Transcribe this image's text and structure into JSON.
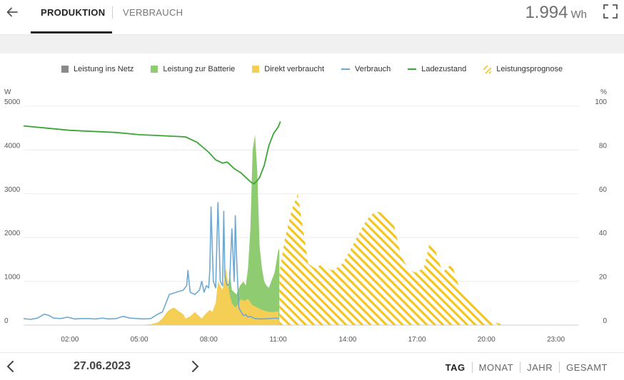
{
  "header": {
    "tabs": [
      {
        "label": "PRODUKTION",
        "active": true
      },
      {
        "label": "VERBRAUCH",
        "active": false
      }
    ],
    "total_value": "1.994",
    "total_unit": "Wh"
  },
  "legend": [
    {
      "label": "Leistung ins Netz",
      "kind": "box",
      "color": "#8a8a8a"
    },
    {
      "label": "Leistung zur Batterie",
      "kind": "box",
      "color": "#8fcb70"
    },
    {
      "label": "Direkt verbraucht",
      "kind": "box",
      "color": "#f5cf55"
    },
    {
      "label": "Verbrauch",
      "kind": "line",
      "color": "#6fa8d0"
    },
    {
      "label": "Ladezustand",
      "kind": "line",
      "color": "#3aa635"
    },
    {
      "label": "Leistungsprognose",
      "kind": "hatch",
      "color": "#f3c51f"
    }
  ],
  "chart_data": {
    "type": "area",
    "left_unit": "W",
    "right_unit": "%",
    "ylim_left": [
      0,
      5000
    ],
    "ylim_right": [
      0,
      100
    ],
    "yticks_left": [
      "0",
      "1000",
      "2000",
      "3000",
      "4000",
      "5000"
    ],
    "yticks_right": [
      "0",
      "20",
      "40",
      "60",
      "80",
      "100"
    ],
    "xlim_hours": [
      0,
      24
    ],
    "xticks": [
      "02:00",
      "05:00",
      "08:00",
      "11:00",
      "14:00",
      "17:00",
      "20:00",
      "23:00"
    ],
    "xtick_hours": [
      2,
      5,
      8,
      11,
      14,
      17,
      20,
      23
    ],
    "grid": true,
    "legend_position": "top",
    "colors": {
      "direkt": "#f5cf55",
      "batterie": "#8fcb70",
      "verbrauch": "#6fa8d0",
      "ladezustand": "#3aa635",
      "prognose": "#f3c51f"
    },
    "series": [
      {
        "name": "Direkt verbraucht",
        "axis": "left",
        "x": [
          5.0,
          5.5,
          5.8,
          6.0,
          6.2,
          6.3,
          6.5,
          6.7,
          6.9,
          7.0,
          7.2,
          7.4,
          7.6,
          7.7,
          7.85,
          7.95,
          8.05,
          8.15,
          8.3,
          8.4,
          8.5,
          8.6,
          8.75,
          8.9,
          9.0,
          9.15,
          9.3,
          9.4,
          9.5,
          9.7,
          9.9,
          10.1,
          10.3,
          10.6,
          10.8,
          11.0,
          11.05
        ],
        "y": [
          0,
          20,
          60,
          150,
          300,
          350,
          400,
          320,
          250,
          150,
          200,
          300,
          200,
          150,
          250,
          300,
          350,
          300,
          500,
          1000,
          900,
          800,
          1300,
          700,
          500,
          400,
          500,
          600,
          550,
          600,
          450,
          400,
          350,
          300,
          300,
          320,
          0
        ]
      },
      {
        "name": "Leistung zur Batterie",
        "axis": "left",
        "x": [
          8.8,
          8.9,
          9.0,
          9.2,
          9.35,
          9.5,
          9.6,
          9.7,
          9.8,
          9.9,
          10.0,
          10.1,
          10.2,
          10.3,
          10.4,
          10.5,
          10.6,
          10.7,
          10.85,
          11.0,
          11.05
        ],
        "y": [
          400,
          1250,
          800,
          700,
          900,
          1000,
          900,
          1300,
          2200,
          4000,
          4350,
          3500,
          1800,
          1300,
          1000,
          900,
          850,
          1000,
          1200,
          1700,
          1750
        ]
      },
      {
        "name": "Verbrauch",
        "axis": "left",
        "x": [
          0.0,
          0.3,
          0.6,
          0.9,
          1.1,
          1.3,
          1.6,
          1.9,
          2.2,
          2.5,
          2.8,
          3.1,
          3.4,
          3.7,
          4.0,
          4.3,
          4.6,
          4.9,
          5.2,
          5.5,
          5.8,
          6.0,
          6.3,
          6.6,
          6.9,
          7.05,
          7.1,
          7.2,
          7.4,
          7.6,
          7.7,
          7.8,
          7.9,
          8.0,
          8.05,
          8.1,
          8.2,
          8.3,
          8.4,
          8.5,
          8.6,
          8.65,
          8.7,
          8.8,
          8.9,
          9.0,
          9.1,
          9.15,
          9.2,
          9.3,
          9.4,
          9.5,
          9.6,
          9.7,
          9.8,
          9.9,
          10.0,
          10.3,
          10.6,
          10.9,
          11.05
        ],
        "y": [
          150,
          130,
          160,
          250,
          220,
          160,
          150,
          180,
          140,
          150,
          150,
          140,
          160,
          140,
          150,
          200,
          160,
          150,
          140,
          150,
          250,
          300,
          700,
          750,
          800,
          900,
          1250,
          750,
          700,
          800,
          1000,
          750,
          900,
          850,
          1300,
          2700,
          1000,
          850,
          2800,
          1000,
          900,
          2600,
          1100,
          900,
          950,
          2200,
          1000,
          2500,
          1600,
          400,
          300,
          220,
          240,
          180,
          200,
          170,
          150,
          140,
          150,
          160,
          150
        ]
      },
      {
        "name": "Ladezustand",
        "axis": "right",
        "x": [
          0.0,
          1.0,
          2.0,
          3.0,
          4.0,
          5.0,
          6.0,
          7.0,
          7.5,
          8.0,
          8.3,
          8.6,
          8.8,
          9.1,
          9.4,
          9.6,
          9.8,
          9.95,
          10.1,
          10.2,
          10.4,
          10.6,
          10.8,
          11.0,
          11.1
        ],
        "y": [
          91,
          90,
          89,
          88.5,
          88,
          87,
          86.5,
          86,
          83.5,
          79,
          75.5,
          74,
          74.5,
          71.5,
          69.5,
          67.5,
          65.5,
          64.5,
          66,
          67.5,
          73,
          82,
          87.5,
          90.5,
          93
        ]
      },
      {
        "name": "Leistungsprognose",
        "axis": "left",
        "x": [
          11.05,
          11.3,
          11.6,
          11.85,
          12.05,
          12.3,
          12.6,
          12.9,
          13.3,
          13.7,
          14.0,
          14.3,
          14.7,
          14.9,
          15.2,
          15.6,
          16.0,
          16.3,
          16.6,
          16.9,
          17.3,
          17.55,
          17.8,
          18.1,
          18.5,
          18.8,
          19.2,
          19.6,
          20.0,
          20.3,
          20.6,
          20.75,
          11.05
        ],
        "y": [
          1200,
          2000,
          2650,
          3000,
          2300,
          1400,
          1300,
          1400,
          1250,
          1350,
          1600,
          1900,
          2300,
          2450,
          2600,
          2550,
          2300,
          1600,
          1300,
          1200,
          1300,
          1900,
          1700,
          1200,
          1400,
          900,
          600,
          400,
          200,
          80,
          30,
          0,
          0
        ]
      }
    ]
  },
  "footer": {
    "date": "27.06.2023",
    "periods": [
      {
        "label": "TAG",
        "active": true
      },
      {
        "label": "MONAT",
        "active": false
      },
      {
        "label": "JAHR",
        "active": false
      },
      {
        "label": "GESAMT",
        "active": false
      }
    ]
  }
}
